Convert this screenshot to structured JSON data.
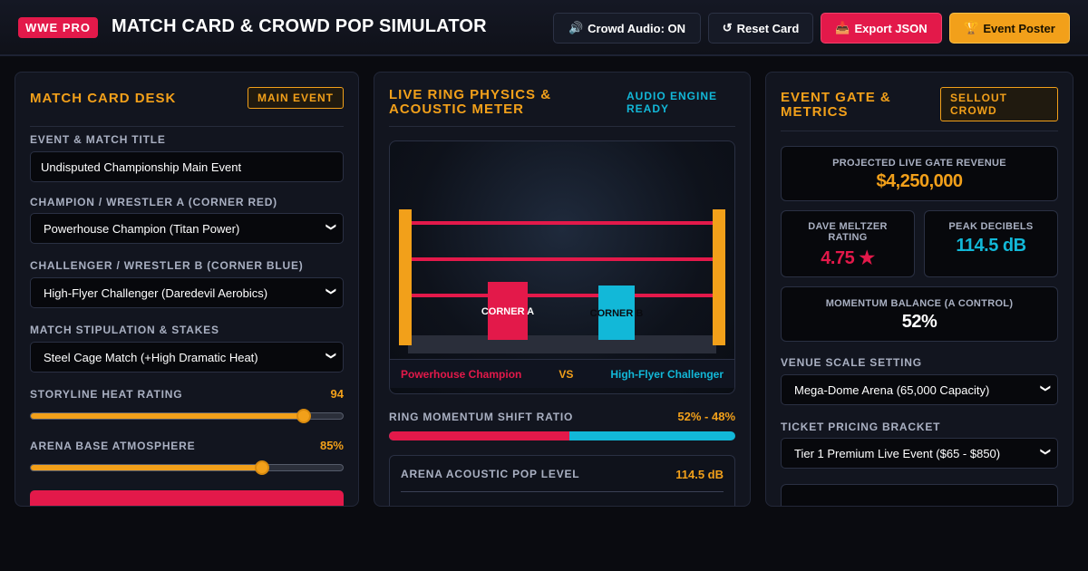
{
  "header": {
    "badge": "WWE PRO",
    "title": "MATCH CARD & CROWD POP SIMULATOR",
    "buttons": {
      "audio": "Crowd Audio: ON",
      "reset": "Reset Card",
      "export": "Export JSON",
      "poster": "Event Poster"
    }
  },
  "left": {
    "title": "MATCH CARD DESK",
    "tag": "MAIN EVENT",
    "event_label": "EVENT & MATCH TITLE",
    "event_value": "Undisputed Championship Main Event",
    "a_label": "CHAMPION / WRESTLER A (CORNER RED)",
    "a_value": "Powerhouse Champion (Titan Power)",
    "b_label": "CHALLENGER / WRESTLER B (CORNER BLUE)",
    "b_value": "High-Flyer Challenger (Daredevil Aerobics)",
    "stip_label": "MATCH STIPULATION & STAKES",
    "stip_value": "Steel Cage Match (+High Dramatic Heat)",
    "heat_label": "STORYLINE HEAT RATING",
    "heat_value": "94",
    "heat_level": 0.875,
    "atmo_label": "ARENA BASE ATMOSPHERE",
    "atmo_value": "85%",
    "atmo_level": 0.74
  },
  "middle": {
    "title": "LIVE RING PHYSICS & ACOUSTIC METER",
    "status": "AUDIO ENGINE READY",
    "corner_a": "CORNER A",
    "corner_b": "CORNER B",
    "name_a": "Powerhouse Champion",
    "vs": "VS",
    "name_b": "High-Flyer Challenger",
    "ratio_label": "RING MOMENTUM SHIFT RATIO",
    "ratio_value": "52% - 48%",
    "ratio_a": 0.52,
    "acoustic_label": "ARENA ACOUSTIC POP LEVEL",
    "acoustic_value": "114.5 dB"
  },
  "right": {
    "title": "EVENT GATE & METRICS",
    "tag": "SELLOUT CROWD",
    "revenue_label": "PROJECTED LIVE GATE REVENUE",
    "revenue_value": "$4,250,000",
    "rating_label": "DAVE MELTZER RATING",
    "rating_value": "4.75 ★",
    "decibel_label": "PEAK DECIBELS",
    "decibel_value": "114.5 dB",
    "momentum_label": "MOMENTUM BALANCE (A CONTROL)",
    "momentum_value": "52%",
    "venue_label": "VENUE SCALE SETTING",
    "venue_value": "Mega-Dome Arena (65,000 Capacity)",
    "ticket_label": "TICKET PRICING BRACKET",
    "ticket_value": "Tier 1 Premium Live Event ($65 - $850)"
  },
  "colors": {
    "accent": "#f2a01a",
    "corner_a": "#e3194a",
    "corner_b": "#12b8d8"
  }
}
